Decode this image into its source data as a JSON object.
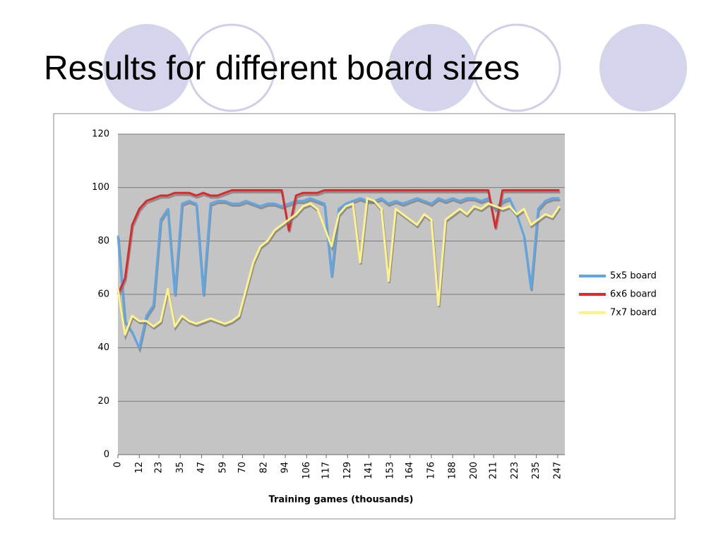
{
  "chart_data": {
    "type": "line",
    "title": "Results for different board sizes",
    "x_label": "Training games (thousands)",
    "x": [
      0,
      4,
      8,
      12,
      16,
      20,
      24,
      28,
      32,
      36,
      40,
      44,
      48,
      52,
      56,
      60,
      64,
      68,
      72,
      76,
      80,
      84,
      88,
      92,
      96,
      100,
      104,
      108,
      112,
      116,
      120,
      124,
      128,
      132,
      136,
      140,
      144,
      148,
      152,
      156,
      160,
      164,
      168,
      172,
      176,
      180,
      184,
      188,
      192,
      196,
      200,
      204,
      208,
      212,
      216,
      220,
      224,
      228,
      232,
      236,
      240,
      244,
      248
    ],
    "series": [
      {
        "name": "5x5 board",
        "color": "#5ea6e6",
        "values": [
          82,
          50,
          46,
          40,
          52,
          56,
          88,
          92,
          60,
          94,
          95,
          94,
          60,
          94,
          95,
          95,
          94,
          94,
          95,
          94,
          93,
          94,
          94,
          93,
          94,
          95,
          95,
          96,
          95,
          94,
          67,
          92,
          94,
          95,
          96,
          95,
          95,
          96,
          94,
          95,
          94,
          95,
          96,
          95,
          94,
          96,
          95,
          96,
          95,
          96,
          96,
          95,
          96,
          92,
          95,
          96,
          90,
          82,
          62,
          92,
          95,
          96,
          96
        ]
      },
      {
        "name": "6x6 board",
        "color": "#d92b2b",
        "values": [
          60,
          66,
          86,
          92,
          95,
          96,
          97,
          97,
          98,
          98,
          98,
          97,
          98,
          97,
          97,
          98,
          99,
          99,
          99,
          99,
          99,
          99,
          99,
          99,
          84,
          97,
          98,
          98,
          98,
          99,
          99,
          99,
          99,
          99,
          99,
          99,
          99,
          99,
          99,
          99,
          99,
          99,
          99,
          99,
          99,
          99,
          99,
          99,
          99,
          99,
          99,
          99,
          99,
          85,
          99,
          99,
          99,
          99,
          99,
          99,
          99,
          99,
          99
        ]
      },
      {
        "name": "7x7 board",
        "color": "#fff28a",
        "values": [
          62,
          45,
          52,
          50,
          50,
          48,
          50,
          62,
          48,
          52,
          50,
          49,
          50,
          51,
          50,
          49,
          50,
          52,
          62,
          72,
          78,
          80,
          84,
          86,
          88,
          90,
          93,
          94,
          92,
          85,
          78,
          90,
          93,
          94,
          72,
          96,
          95,
          92,
          65,
          92,
          90,
          88,
          86,
          90,
          88,
          56,
          88,
          90,
          92,
          90,
          93,
          92,
          94,
          93,
          92,
          93,
          90,
          92,
          86,
          88,
          90,
          89,
          93
        ]
      }
    ],
    "xlim": [
      0,
      251
    ],
    "xticks": [
      0,
      12,
      23,
      35,
      47,
      59,
      70,
      82,
      94,
      106,
      117,
      129,
      141,
      153,
      164,
      176,
      188,
      200,
      211,
      223,
      235,
      247
    ],
    "ylim": [
      0,
      120
    ],
    "yticks": [
      0,
      20,
      40,
      60,
      80,
      100,
      120
    ],
    "grid": true,
    "legend": "right"
  }
}
